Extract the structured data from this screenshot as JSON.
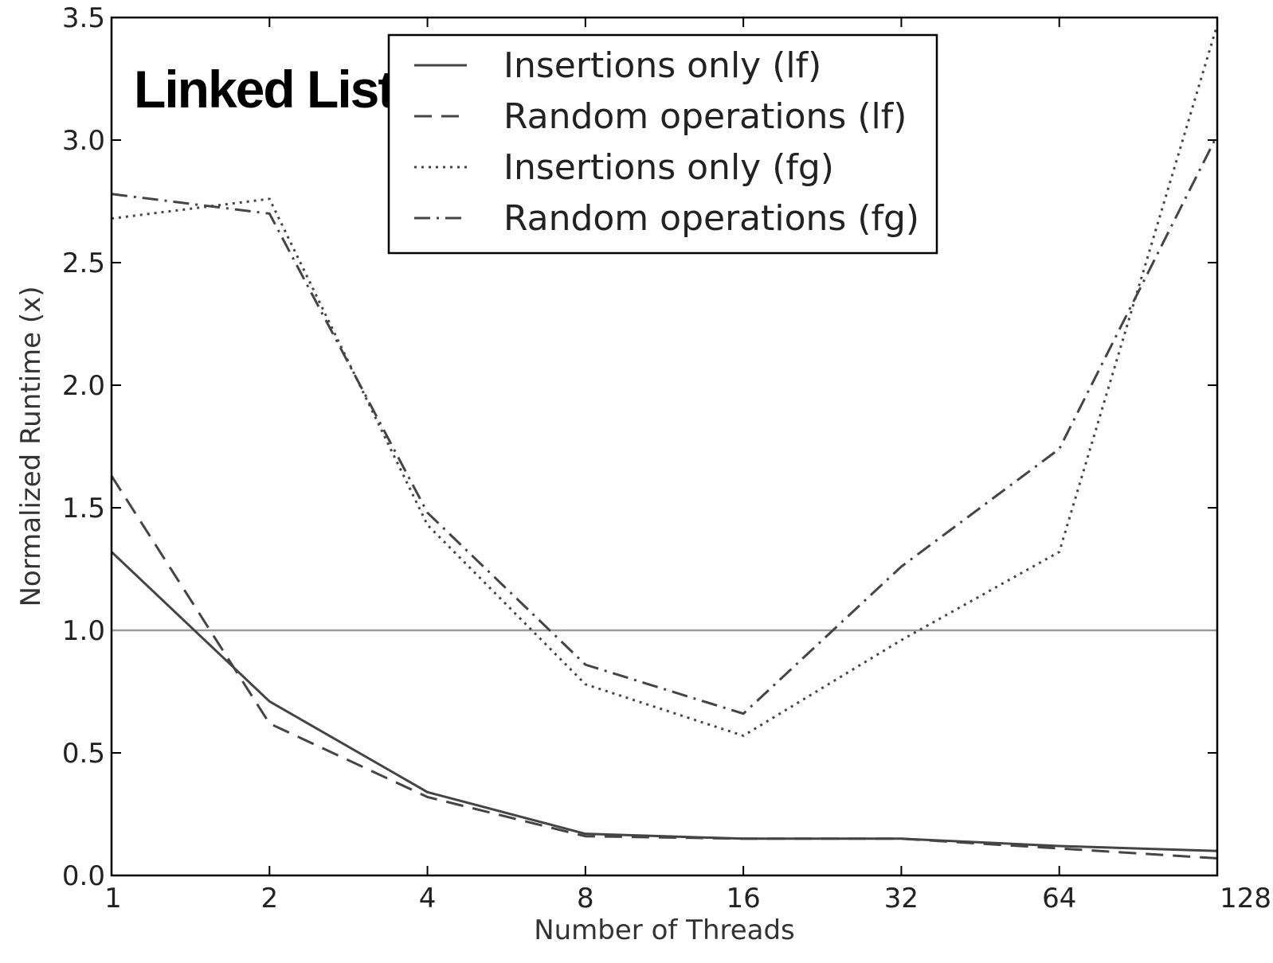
{
  "chart_data": {
    "type": "line",
    "title": "Linked List",
    "xlabel": "Number of Threads",
    "ylabel": "Normalized Runtime (x)",
    "x_scale": "log2",
    "categories": [
      "1",
      "2",
      "4",
      "8",
      "16",
      "32",
      "64",
      "128"
    ],
    "x": [
      1,
      2,
      4,
      8,
      16,
      32,
      64,
      128
    ],
    "ylim": [
      0.0,
      3.5
    ],
    "y_ticks": [
      "0.0",
      "0.5",
      "1.0",
      "1.5",
      "2.0",
      "2.5",
      "3.0",
      "3.5"
    ],
    "y_tick_values": [
      0.0,
      0.5,
      1.0,
      1.5,
      2.0,
      2.5,
      3.0,
      3.5
    ],
    "reference_line": 1.0,
    "legend_position": "top-center",
    "line_color": "#444444",
    "reference_color": "#999999",
    "series": [
      {
        "name": "Insertions only (lf)",
        "style": "solid",
        "values": [
          1.32,
          0.71,
          0.34,
          0.17,
          0.15,
          0.15,
          0.12,
          0.1
        ]
      },
      {
        "name": "Random operations (lf)",
        "style": "dashed",
        "values": [
          1.63,
          0.62,
          0.32,
          0.16,
          0.15,
          0.15,
          0.11,
          0.07
        ]
      },
      {
        "name": "Insertions only (fg)",
        "style": "dotted",
        "values": [
          2.68,
          2.76,
          1.43,
          0.78,
          0.57,
          0.96,
          1.32,
          3.47
        ]
      },
      {
        "name": "Random operations (fg)",
        "style": "dashdot",
        "values": [
          2.78,
          2.7,
          1.48,
          0.86,
          0.66,
          1.26,
          1.74,
          3.02
        ]
      }
    ]
  }
}
